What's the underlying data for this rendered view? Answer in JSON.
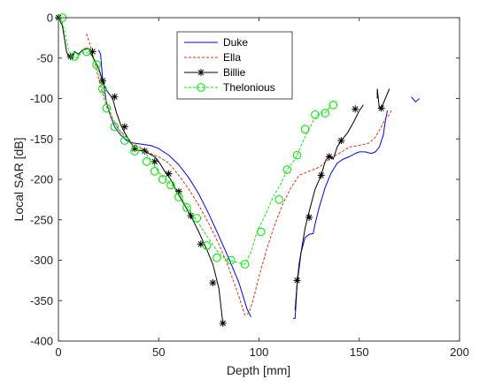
{
  "chart_data": {
    "type": "line",
    "title": "",
    "xlabel": "Depth [mm]",
    "ylabel": "Local SAR [dB]",
    "xlim": [
      0,
      200
    ],
    "ylim": [
      -400,
      0
    ],
    "xticks": [
      0,
      50,
      100,
      150,
      200
    ],
    "yticks": [
      0,
      -50,
      -100,
      -150,
      -200,
      -250,
      -300,
      -350,
      -400
    ],
    "grid": false,
    "legend_position": "top-center",
    "series": [
      {
        "name": "Duke",
        "color": "#0000ff",
        "style": "solid",
        "marker": "none",
        "segments": [
          [
            [
              20,
              -40
            ],
            [
              21,
              -45
            ],
            [
              22,
              -75
            ],
            [
              24,
              -105
            ],
            [
              26,
              -122
            ],
            [
              28,
              -135
            ],
            [
              31,
              -145
            ],
            [
              34,
              -152
            ],
            [
              37,
              -155
            ],
            [
              40,
              -156
            ],
            [
              43,
              -157
            ],
            [
              46,
              -158
            ],
            [
              50,
              -162
            ],
            [
              55,
              -170
            ],
            [
              60,
              -182
            ],
            [
              65,
              -198
            ],
            [
              70,
              -218
            ],
            [
              75,
              -243
            ],
            [
              80,
              -270
            ],
            [
              85,
              -298
            ],
            [
              90,
              -328
            ],
            [
              94,
              -360
            ],
            [
              96,
              -370
            ]
          ],
          [
            [
              117,
              -372
            ],
            [
              118,
              -372
            ],
            [
              119,
              -330
            ],
            [
              121,
              -290
            ],
            [
              123,
              -272
            ],
            [
              125,
              -268
            ],
            [
              127,
              -267
            ],
            [
              128,
              -255
            ],
            [
              130,
              -235
            ],
            [
              133,
              -210
            ],
            [
              136,
              -192
            ],
            [
              139,
              -180
            ],
            [
              142,
              -175
            ],
            [
              145,
              -172
            ],
            [
              148,
              -168
            ],
            [
              150,
              -166
            ],
            [
              153,
              -166
            ],
            [
              156,
              -168
            ],
            [
              158,
              -166
            ],
            [
              160,
              -160
            ],
            [
              162,
              -145
            ],
            [
              163,
              -128
            ],
            [
              164,
              -115
            ]
          ],
          [
            [
              176,
              -98
            ],
            [
              178,
              -104
            ],
            [
              180,
              -100
            ]
          ]
        ]
      },
      {
        "name": "Ella",
        "color": "#ff2200",
        "style": "dashed",
        "marker": "none",
        "segments": [
          [
            [
              14,
              -20
            ],
            [
              16,
              -35
            ],
            [
              18,
              -55
            ],
            [
              21,
              -85
            ],
            [
              24,
              -110
            ],
            [
              27,
              -127
            ],
            [
              30,
              -138
            ],
            [
              34,
              -148
            ],
            [
              38,
              -157
            ],
            [
              42,
              -162
            ],
            [
              46,
              -168
            ],
            [
              50,
              -172
            ],
            [
              55,
              -180
            ],
            [
              60,
              -195
            ],
            [
              65,
              -212
            ],
            [
              70,
              -232
            ],
            [
              75,
              -255
            ],
            [
              80,
              -280
            ],
            [
              85,
              -310
            ],
            [
              90,
              -345
            ],
            [
              93,
              -368
            ],
            [
              95,
              -365
            ],
            [
              97,
              -350
            ],
            [
              100,
              -320
            ],
            [
              104,
              -285
            ],
            [
              108,
              -255
            ],
            [
              112,
              -230
            ],
            [
              116,
              -210
            ],
            [
              120,
              -195
            ],
            [
              125,
              -190
            ],
            [
              130,
              -185
            ],
            [
              135,
              -175
            ],
            [
              140,
              -168
            ],
            [
              145,
              -160
            ],
            [
              150,
              -158
            ],
            [
              155,
              -155
            ],
            [
              158,
              -148
            ],
            [
              161,
              -135
            ],
            [
              163,
              -125
            ],
            [
              165,
              -120
            ],
            [
              166,
              -115
            ]
          ]
        ]
      },
      {
        "name": "Billie",
        "color": "#000000",
        "style": "solid",
        "marker": "asterisk",
        "segments": [
          [
            [
              0,
              0
            ],
            [
              2,
              -10
            ],
            [
              4,
              -42
            ],
            [
              5,
              -48
            ],
            [
              7,
              -50
            ],
            [
              8,
              -42
            ],
            [
              10,
              -45
            ],
            [
              12,
              -40
            ],
            [
              15,
              -38
            ],
            [
              17,
              -48
            ],
            [
              20,
              -62
            ],
            [
              22,
              -78
            ],
            [
              24,
              -90
            ],
            [
              27,
              -100
            ],
            [
              29,
              -118
            ],
            [
              31,
              -132
            ],
            [
              33,
              -142
            ],
            [
              36,
              -155
            ],
            [
              38,
              -160
            ],
            [
              40,
              -164
            ],
            [
              43,
              -165
            ],
            [
              45,
              -168
            ],
            [
              48,
              -172
            ],
            [
              50,
              -178
            ],
            [
              53,
              -190
            ],
            [
              56,
              -200
            ],
            [
              59,
              -215
            ],
            [
              62,
              -228
            ],
            [
              66,
              -245
            ],
            [
              70,
              -265
            ],
            [
              74,
              -287
            ],
            [
              77,
              -305
            ],
            [
              80,
              -335
            ],
            [
              82,
              -378
            ]
          ],
          [
            [
              118,
              -362
            ],
            [
              119,
              -330
            ],
            [
              120,
              -305
            ],
            [
              123,
              -260
            ],
            [
              125,
              -240
            ],
            [
              128,
              -212
            ],
            [
              131,
              -195
            ],
            [
              133,
              -178
            ],
            [
              135,
              -170
            ],
            [
              137,
              -175
            ],
            [
              139,
              -160
            ],
            [
              141,
              -152
            ],
            [
              144,
              -143
            ],
            [
              147,
              -130
            ],
            [
              150,
              -115
            ],
            [
              152,
              -108
            ]
          ],
          [
            [
              159,
              -100
            ],
            [
              159,
              -88
            ],
            [
              160,
              -112
            ],
            [
              161,
              -112
            ],
            [
              163,
              -100
            ],
            [
              165,
              -88
            ]
          ]
        ],
        "markers": [
          [
            0,
            0
          ],
          [
            6,
            -48
          ],
          [
            17,
            -42
          ],
          [
            22,
            -78
          ],
          [
            28,
            -98
          ],
          [
            33,
            -135
          ],
          [
            38,
            -162
          ],
          [
            43,
            -165
          ],
          [
            48,
            -178
          ],
          [
            55,
            -193
          ],
          [
            60,
            -215
          ],
          [
            66,
            -245
          ],
          [
            71,
            -280
          ],
          [
            77,
            -328
          ],
          [
            82,
            -378
          ],
          [
            119,
            -325
          ],
          [
            125,
            -247
          ],
          [
            131,
            -195
          ],
          [
            135,
            -172
          ],
          [
            141,
            -152
          ],
          [
            148,
            -113
          ],
          [
            161,
            -112
          ]
        ]
      },
      {
        "name": "Thelonious",
        "color": "#00ee00",
        "style": "dashed",
        "marker": "circle",
        "segments": [
          [
            [
              1,
              0
            ],
            [
              3,
              -15
            ],
            [
              5,
              -40
            ],
            [
              7,
              -48
            ],
            [
              9,
              -50
            ],
            [
              11,
              -45
            ],
            [
              13,
              -42
            ],
            [
              16,
              -45
            ],
            [
              19,
              -58
            ],
            [
              22,
              -88
            ],
            [
              25,
              -112
            ],
            [
              29,
              -135
            ],
            [
              33,
              -148
            ],
            [
              37,
              -158
            ],
            [
              41,
              -162
            ],
            [
              45,
              -172
            ],
            [
              49,
              -188
            ],
            [
              53,
              -200
            ],
            [
              57,
              -208
            ],
            [
              61,
              -222
            ],
            [
              65,
              -236
            ],
            [
              70,
              -255
            ],
            [
              74,
              -270
            ],
            [
              79,
              -288
            ],
            [
              83,
              -298
            ],
            [
              88,
              -302
            ],
            [
              93,
              -305
            ],
            [
              96,
              -290
            ],
            [
              99,
              -265
            ],
            [
              103,
              -245
            ],
            [
              107,
              -222
            ],
            [
              111,
              -205
            ],
            [
              114,
              -188
            ],
            [
              118,
              -175
            ],
            [
              121,
              -158
            ],
            [
              124,
              -142
            ],
            [
              127,
              -128
            ],
            [
              130,
              -118
            ],
            [
              133,
              -118
            ],
            [
              136,
              -108
            ]
          ]
        ],
        "markers": [
          [
            2,
            0
          ],
          [
            8,
            -48
          ],
          [
            14,
            -42
          ],
          [
            19,
            -58
          ],
          [
            22,
            -88
          ],
          [
            24,
            -112
          ],
          [
            28,
            -135
          ],
          [
            33,
            -152
          ],
          [
            38,
            -165
          ],
          [
            44,
            -178
          ],
          [
            48,
            -190
          ],
          [
            52,
            -200
          ],
          [
            56,
            -207
          ],
          [
            60,
            -222
          ],
          [
            64,
            -235
          ],
          [
            69,
            -248
          ],
          [
            74,
            -282
          ],
          [
            79,
            -297
          ],
          [
            86,
            -300
          ],
          [
            93,
            -305
          ],
          [
            101,
            -265
          ],
          [
            110,
            -225
          ],
          [
            114,
            -188
          ],
          [
            119,
            -170
          ],
          [
            123,
            -138
          ],
          [
            128,
            -120
          ],
          [
            133,
            -118
          ],
          [
            137,
            -108
          ]
        ]
      }
    ]
  }
}
